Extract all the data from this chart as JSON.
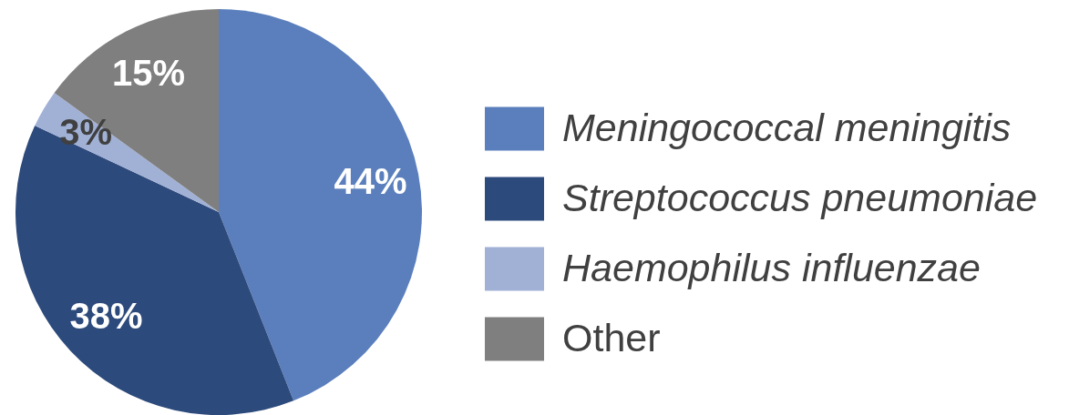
{
  "chart_data": {
    "type": "pie",
    "categories": [
      "Meningococcal meningitis",
      "Streptococcus pneumoniae",
      "Haemophilus influenzae",
      "Other"
    ],
    "values": [
      44,
      38,
      3,
      15
    ],
    "colors": [
      "#5b7fbc",
      "#2d4a7c",
      "#a1b1d6",
      "#7f7f7f"
    ],
    "value_labels": [
      "44%",
      "38%",
      "3%",
      "15%"
    ],
    "legend": "right"
  }
}
